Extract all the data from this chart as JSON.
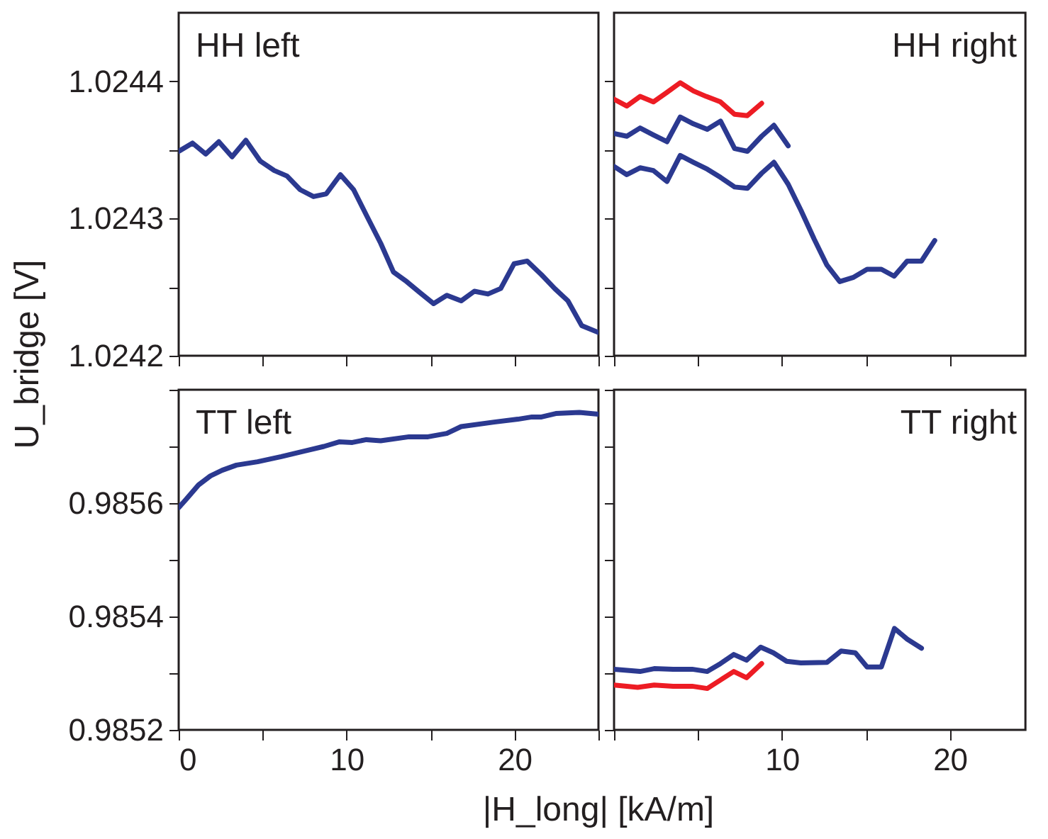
{
  "chart_data": [
    {
      "type": "line",
      "title": "HH left",
      "ylabel": "U_bridge [V]",
      "xlim": [
        0,
        25
      ],
      "ylim": [
        1.0242,
        1.02445
      ],
      "tick_labels": "y",
      "xticks": [
        0,
        {
          "value": 5,
          "label": null
        },
        10,
        {
          "value": 15,
          "label": null
        },
        20,
        {
          "value": 25,
          "label": null
        }
      ],
      "yticks": [
        1.0242,
        {
          "value": 1.02425,
          "label": null
        },
        1.0243,
        {
          "value": 1.02435,
          "label": null
        },
        1.0244
      ],
      "series": [
        {
          "color": "#2b3990",
          "x": [
            0,
            0.82,
            1.61,
            2.39,
            3.18,
            4.0,
            4.85,
            5.69,
            6.45,
            7.24,
            8.03,
            8.79,
            9.63,
            10.42,
            11.24,
            12.03,
            12.79,
            13.58,
            14.37,
            15.18,
            15.97,
            16.82,
            17.61,
            18.42,
            19.18,
            19.97,
            20.76,
            21.61,
            22.39,
            23.18,
            24.0,
            24.99
          ],
          "values": [
            1.024349,
            1.024355,
            1.024347,
            1.024356,
            1.024345,
            1.024357,
            1.024342,
            1.024335,
            1.024331,
            1.024321,
            1.024316,
            1.024318,
            1.024332,
            1.024321,
            1.024301,
            1.024282,
            1.024261,
            1.024254,
            1.024246,
            1.024238,
            1.024244,
            1.02424,
            1.024247,
            1.024245,
            1.024249,
            1.024267,
            1.024269,
            1.024259,
            1.024249,
            1.02424,
            1.024222,
            1.024217
          ]
        }
      ]
    },
    {
      "type": "line",
      "title": "HH right",
      "xlim": [
        0,
        24.5
      ],
      "ylim": [
        1.0242,
        1.02445
      ],
      "tick_labels": false,
      "xticks": [
        {
          "value": 0,
          "label": null
        },
        {
          "value": 5,
          "label": null
        },
        {
          "value": 10,
          "label": null
        },
        {
          "value": 15,
          "label": null
        },
        {
          "value": 20,
          "label": null
        }
      ],
      "yticks": [
        {
          "value": 1.0242,
          "label": null
        },
        {
          "value": 1.02425,
          "label": null
        },
        {
          "value": 1.0243,
          "label": null
        },
        {
          "value": 1.02435,
          "label": null
        },
        {
          "value": 1.0244,
          "label": null
        }
      ],
      "series": [
        {
          "color": "#ed1c24",
          "x": [
            0,
            0.76,
            1.55,
            2.34,
            3.15,
            3.94,
            4.73,
            5.49,
            6.34,
            7.18,
            7.94,
            8.79
          ],
          "values": [
            1.024387,
            1.024382,
            1.024389,
            1.024385,
            1.024392,
            1.024399,
            1.024393,
            1.024389,
            1.024385,
            1.024376,
            1.024375,
            1.024384
          ]
        },
        {
          "color": "#2b3990",
          "x": [
            0,
            0.76,
            1.55,
            2.34,
            3.15,
            3.94,
            4.73,
            5.55,
            6.34,
            7.18,
            7.94,
            8.79,
            9.52,
            10.37
          ],
          "values": [
            1.024362,
            1.02436,
            1.024366,
            1.024361,
            1.024356,
            1.024374,
            1.024369,
            1.024365,
            1.024371,
            1.024351,
            1.024349,
            1.02436,
            1.024368,
            1.024353
          ]
        },
        {
          "color": "#2b3990",
          "x": [
            0,
            0.76,
            1.55,
            2.34,
            3.15,
            3.94,
            4.73,
            5.55,
            6.34,
            7.18,
            7.94,
            8.79,
            9.52,
            10.37,
            11.13,
            11.92,
            12.68,
            13.44,
            14.23,
            15.07,
            15.92,
            16.68,
            17.46,
            18.31,
            19.1
          ],
          "values": [
            1.024338,
            1.024332,
            1.024337,
            1.024335,
            1.024327,
            1.024346,
            1.024341,
            1.024336,
            1.02433,
            1.024323,
            1.024322,
            1.024333,
            1.024341,
            1.024325,
            1.024306,
            1.024285,
            1.024266,
            1.024254,
            1.024257,
            1.024263,
            1.024263,
            1.024258,
            1.024269,
            1.024269,
            1.024284
          ]
        }
      ]
    },
    {
      "type": "line",
      "title": "TT left",
      "xlabel": "|H_long| [kA/m]",
      "xlim": [
        0,
        25
      ],
      "ylim": [
        0.9852,
        0.9858
      ],
      "xticks": [
        0,
        {
          "value": 5,
          "label": null
        },
        10,
        {
          "value": 15,
          "label": null
        },
        20,
        {
          "value": 25,
          "label": null
        }
      ],
      "yticks": [
        0.9852,
        {
          "value": 0.9853,
          "label": null
        },
        0.9854,
        {
          "value": 0.9855,
          "label": null
        },
        0.9856,
        {
          "value": 0.9857,
          "label": null
        },
        {
          "value": 0.9858,
          "label": null
        }
      ],
      "series": [
        {
          "color": "#2b3990",
          "x": [
            0,
            0.48,
            1.18,
            1.89,
            2.59,
            3.44,
            4.7,
            6.11,
            7.52,
            8.65,
            9.55,
            10.34,
            11.18,
            12.03,
            13.72,
            14.85,
            15.97,
            16.82,
            18.79,
            20.2,
            21.04,
            21.61,
            22.46,
            23.86,
            24.99
          ],
          "values": [
            0.985592,
            0.985608,
            0.985632,
            0.985648,
            0.985658,
            0.985667,
            0.985673,
            0.985682,
            0.985692,
            0.9857,
            0.985708,
            0.985707,
            0.985712,
            0.98571,
            0.985717,
            0.985717,
            0.985723,
            0.985735,
            0.985743,
            0.985748,
            0.985752,
            0.985752,
            0.985758,
            0.98576,
            0.985757
          ]
        }
      ]
    },
    {
      "type": "line",
      "title": "TT right",
      "xlim": [
        0,
        24.5
      ],
      "ylim": [
        0.9852,
        0.9858
      ],
      "tick_labels": "x",
      "xticks": [
        {
          "value": 0,
          "label": null
        },
        {
          "value": 5,
          "label": null
        },
        10,
        {
          "value": 15,
          "label": null
        },
        20
      ],
      "yticks": [
        {
          "value": 0.9852,
          "label": null
        },
        {
          "value": 0.9853,
          "label": null
        },
        {
          "value": 0.9854,
          "label": null
        },
        {
          "value": 0.9855,
          "label": null
        },
        {
          "value": 0.9856,
          "label": null
        },
        {
          "value": 0.9857,
          "label": null
        },
        {
          "value": 0.9858,
          "label": null
        }
      ],
      "series": [
        {
          "color": "#2b3990",
          "x": [
            0,
            1.55,
            2.39,
            3.52,
            4.65,
            5.55,
            6.34,
            7.13,
            7.89,
            8.73,
            9.49,
            10.28,
            11.13,
            12.68,
            13.52,
            14.37,
            15.07,
            15.92,
            16.7,
            17.46,
            18.31
          ],
          "values": [
            0.985307,
            0.985303,
            0.985308,
            0.985307,
            0.985307,
            0.985303,
            0.985317,
            0.985333,
            0.985323,
            0.985346,
            0.985336,
            0.985321,
            0.985318,
            0.985319,
            0.985339,
            0.985336,
            0.985311,
            0.985311,
            0.985379,
            0.98536,
            0.985344
          ]
        },
        {
          "color": "#ed1c24",
          "x": [
            0,
            1.41,
            2.39,
            3.52,
            4.65,
            5.55,
            6.34,
            7.13,
            7.89,
            8.79
          ],
          "values": [
            0.985279,
            0.985275,
            0.985279,
            0.985277,
            0.985277,
            0.985273,
            0.985288,
            0.985303,
            0.985292,
            0.985317
          ]
        }
      ]
    }
  ]
}
